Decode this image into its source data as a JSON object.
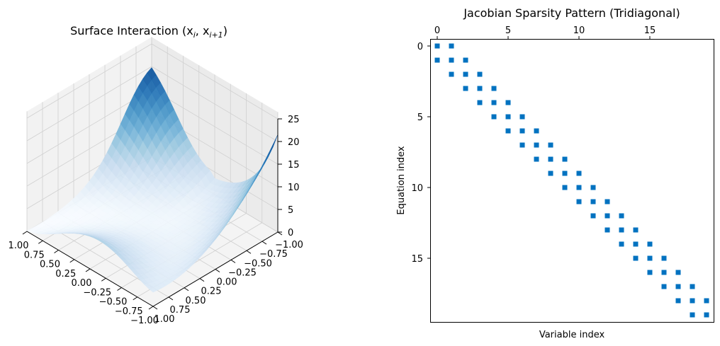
{
  "chart_data": [
    {
      "type": "surface",
      "title": "Surface Interaction ($x_i, x_{i+1}$)",
      "title_display": "Surface Interaction (x",
      "title_sub_i": "i",
      "title_sub_ip1": "i+1",
      "x_ticks": [
        "1.00",
        "0.75",
        "0.50",
        "0.25",
        "0.00",
        "−0.25",
        "−0.50",
        "−0.75",
        "−1.00"
      ],
      "x_tick_values": [
        1,
        0.75,
        0.5,
        0.25,
        0,
        -0.25,
        -0.5,
        -0.75,
        -1
      ],
      "y_ticks": [
        "−1.00",
        "−0.75",
        "−0.50",
        "−0.25",
        "0.00",
        "0.25",
        "0.50",
        "0.75",
        "1.00"
      ],
      "y_tick_values": [
        -1,
        -0.75,
        -0.5,
        -0.25,
        0,
        0.25,
        0.5,
        0.75,
        1
      ],
      "z_ticks": [
        "0",
        "5",
        "10",
        "15",
        "20",
        "25"
      ],
      "z_tick_values": [
        0,
        5,
        10,
        15,
        20,
        25
      ],
      "xlim": [
        -1,
        1
      ],
      "ylim": [
        -1,
        1
      ],
      "zlim": [
        0,
        25
      ],
      "colormap": "Blues",
      "grid": true
    },
    {
      "type": "spy",
      "title": "Jacobian Sparsity Pattern (Tridiagonal)",
      "xlabel": "Variable index",
      "ylabel": "Equation index",
      "size": 20,
      "x_ticks": [
        "0",
        "5",
        "10",
        "15"
      ],
      "x_tick_values": [
        0,
        5,
        10,
        15
      ],
      "y_ticks": [
        "0",
        "5",
        "10",
        "15"
      ],
      "y_tick_values": [
        0,
        5,
        10,
        15
      ],
      "marker_color": "#0072c0",
      "nonzero_columns_by_row": [
        [
          0,
          1
        ],
        [
          0,
          1,
          2
        ],
        [
          1,
          2,
          3
        ],
        [
          2,
          3,
          4
        ],
        [
          3,
          4,
          5
        ],
        [
          4,
          5,
          6
        ],
        [
          5,
          6,
          7
        ],
        [
          6,
          7,
          8
        ],
        [
          7,
          8,
          9
        ],
        [
          8,
          9,
          10
        ],
        [
          9,
          10,
          11
        ],
        [
          10,
          11,
          12
        ],
        [
          11,
          12,
          13
        ],
        [
          12,
          13,
          14
        ],
        [
          13,
          14,
          15
        ],
        [
          14,
          15,
          16
        ],
        [
          15,
          16,
          17
        ],
        [
          16,
          17,
          18
        ],
        [
          17,
          18,
          19
        ],
        [
          18,
          19
        ]
      ]
    }
  ]
}
